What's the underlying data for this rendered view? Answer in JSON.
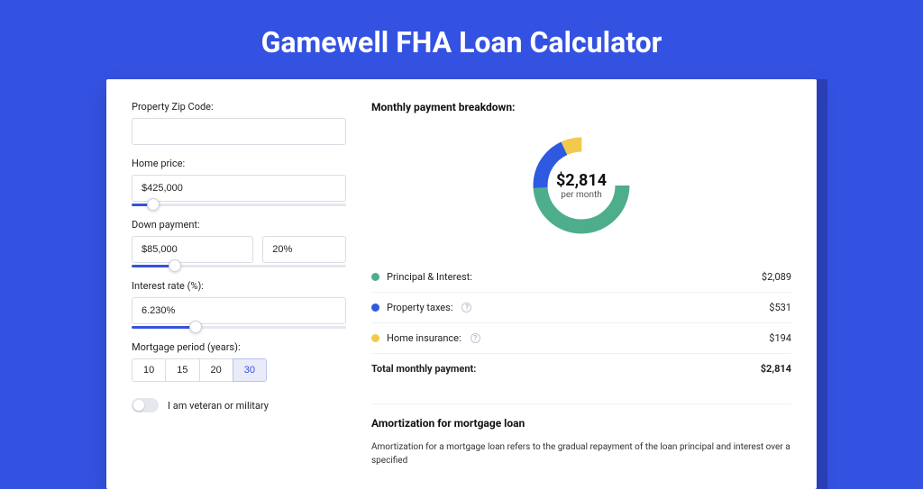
{
  "page": {
    "title": "Gamewell FHA Loan Calculator",
    "bg_color": "#3452e1",
    "card_bg": "#ffffff"
  },
  "form": {
    "zip": {
      "label": "Property Zip Code:",
      "value": ""
    },
    "home_price": {
      "label": "Home price:",
      "value": "$425,000",
      "slider_pct": 10
    },
    "down_payment": {
      "label": "Down payment:",
      "amount": "$85,000",
      "percent": "20%",
      "slider_pct": 20
    },
    "interest": {
      "label": "Interest rate (%):",
      "value": "6.230%",
      "slider_pct": 30
    },
    "period": {
      "label": "Mortgage period (years):",
      "options": [
        "10",
        "15",
        "20",
        "30"
      ],
      "selected": "30"
    },
    "veteran": {
      "label": "I am veteran or military",
      "on": false
    }
  },
  "breakdown": {
    "title": "Monthly payment breakdown:",
    "donut": {
      "amount": "$2,814",
      "sub": "per month",
      "thickness": 16,
      "segments": [
        {
          "label": "Principal & Interest:",
          "value": "$2,089",
          "color": "#4eae8c",
          "pct": 74,
          "info": false
        },
        {
          "label": "Property taxes:",
          "value": "$531",
          "color": "#2f59e0",
          "pct": 19,
          "info": true
        },
        {
          "label": "Home insurance:",
          "value": "$194",
          "color": "#f2c94c",
          "pct": 7,
          "info": true
        }
      ]
    },
    "total": {
      "label": "Total monthly payment:",
      "value": "$2,814"
    }
  },
  "amort": {
    "title": "Amortization for mortgage loan",
    "text": "Amortization for a mortgage loan refers to the gradual repayment of the loan principal and interest over a specified"
  }
}
